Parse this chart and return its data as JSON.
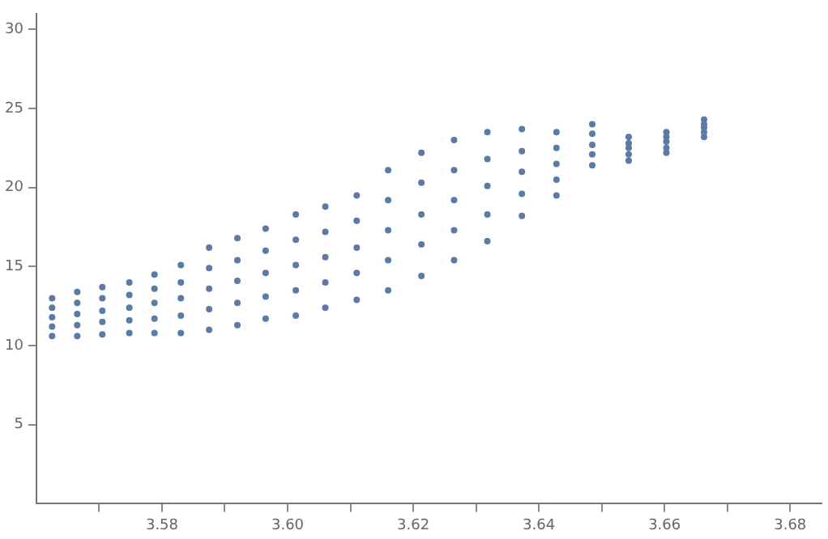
{
  "chart_data": {
    "type": "scatter",
    "marker": "circle",
    "grid": false,
    "legend": false,
    "xlim": [
      3.56,
      3.685
    ],
    "ylim": [
      0,
      31
    ],
    "xticks": [
      {
        "value": 3.57,
        "label": null
      },
      3.58,
      {
        "value": 3.59,
        "label": null
      },
      {
        "value": 3.6,
        "label": "3.60"
      },
      {
        "value": 3.61,
        "label": null
      },
      3.62,
      {
        "value": 3.63,
        "label": null
      },
      3.64,
      {
        "value": 3.65,
        "label": null
      },
      3.66,
      {
        "value": 3.67,
        "label": null
      },
      3.68
    ],
    "yticks": [
      5,
      10,
      15,
      20,
      25,
      30
    ],
    "series": [
      {
        "color": "#5b7aa6",
        "x": [
          3.5625,
          3.5625,
          3.5625,
          3.5625,
          3.5625,
          3.5665,
          3.5665,
          3.5665,
          3.5665,
          3.5665,
          3.5705,
          3.5705,
          3.5705,
          3.5705,
          3.5705,
          3.5748,
          3.5748,
          3.5748,
          3.5748,
          3.5748,
          3.5788,
          3.5788,
          3.5788,
          3.5788,
          3.5788,
          3.583,
          3.583,
          3.583,
          3.583,
          3.583,
          3.5875,
          3.5875,
          3.5875,
          3.5875,
          3.5875,
          3.592,
          3.592,
          3.592,
          3.592,
          3.592,
          3.5965,
          3.5965,
          3.5965,
          3.5965,
          3.5965,
          3.6013,
          3.6013,
          3.6013,
          3.6013,
          3.6013,
          3.606,
          3.606,
          3.606,
          3.606,
          3.606,
          3.611,
          3.611,
          3.611,
          3.611,
          3.611,
          3.616,
          3.616,
          3.616,
          3.616,
          3.616,
          3.6213,
          3.6213,
          3.6213,
          3.6213,
          3.6213,
          3.6265,
          3.6265,
          3.6265,
          3.6265,
          3.6265,
          3.6318,
          3.6318,
          3.6318,
          3.6318,
          3.6318,
          3.6373,
          3.6373,
          3.6373,
          3.6373,
          3.6373,
          3.6428,
          3.6428,
          3.6428,
          3.6428,
          3.6428,
          3.6485,
          3.6485,
          3.6485,
          3.6485,
          3.6485,
          3.6543,
          3.6543,
          3.6543,
          3.6543,
          3.6543,
          3.6603,
          3.6603,
          3.6603,
          3.6603,
          3.6603,
          3.6663,
          3.6663,
          3.6663,
          3.6663,
          3.6663
        ],
        "values": [
          10.6,
          11.2,
          11.8,
          12.4,
          13.0,
          10.6,
          11.3,
          12.0,
          12.7,
          13.4,
          10.7,
          11.5,
          12.2,
          13.0,
          13.7,
          10.8,
          11.6,
          12.4,
          13.2,
          14.0,
          10.8,
          11.7,
          12.7,
          13.6,
          14.5,
          10.8,
          11.9,
          13.0,
          14.0,
          15.1,
          11.0,
          12.3,
          13.6,
          14.9,
          16.2,
          11.3,
          12.7,
          14.1,
          15.4,
          16.8,
          11.7,
          13.1,
          14.6,
          16.0,
          17.4,
          11.9,
          13.5,
          15.1,
          16.7,
          18.3,
          12.4,
          14.0,
          15.6,
          17.2,
          18.8,
          12.9,
          14.6,
          16.2,
          17.9,
          19.5,
          13.5,
          15.4,
          17.3,
          19.2,
          21.1,
          14.4,
          16.4,
          18.3,
          20.3,
          22.2,
          15.4,
          17.3,
          19.2,
          21.1,
          23.0,
          16.6,
          18.3,
          20.1,
          21.8,
          23.5,
          18.2,
          19.6,
          21.0,
          22.3,
          23.7,
          19.5,
          20.5,
          21.5,
          22.5,
          23.5,
          21.4,
          22.1,
          22.7,
          23.4,
          24.0,
          21.7,
          22.1,
          22.5,
          22.8,
          23.2,
          22.2,
          22.5,
          22.9,
          23.2,
          23.5,
          23.2,
          23.5,
          23.8,
          24.0,
          24.3
        ]
      }
    ]
  }
}
